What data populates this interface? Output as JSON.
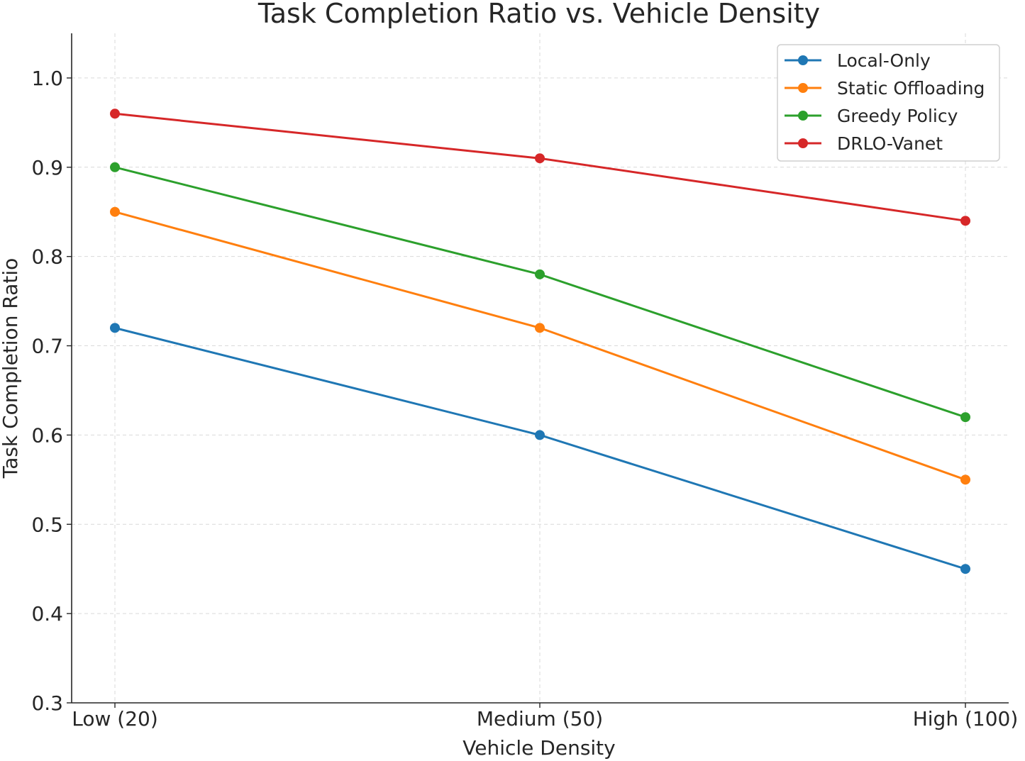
{
  "chart_data": {
    "type": "line",
    "title": "Task Completion Ratio vs. Vehicle Density",
    "xlabel": "Vehicle Density",
    "ylabel": "Task Completion Ratio",
    "categories": [
      "Low (20)",
      "Medium (50)",
      "High (100)"
    ],
    "ylim": [
      0.3,
      1.05
    ],
    "yticks": [
      0.3,
      0.4,
      0.5,
      0.6,
      0.7,
      0.8,
      0.9,
      1.0
    ],
    "ytick_labels": [
      "0.3",
      "0.4",
      "0.5",
      "0.6",
      "0.7",
      "0.8",
      "0.9",
      "1.0"
    ],
    "grid": true,
    "legend_position": "top-right",
    "series": [
      {
        "name": "Local-Only",
        "color": "#1f77b4",
        "values": [
          0.72,
          0.6,
          0.45
        ]
      },
      {
        "name": "Static Offloading",
        "color": "#ff7f0e",
        "values": [
          0.85,
          0.72,
          0.55
        ]
      },
      {
        "name": "Greedy Policy",
        "color": "#2ca02c",
        "values": [
          0.9,
          0.78,
          0.62
        ]
      },
      {
        "name": "DRLO-Vanet",
        "color": "#d62728",
        "values": [
          0.96,
          0.91,
          0.84
        ]
      }
    ]
  }
}
